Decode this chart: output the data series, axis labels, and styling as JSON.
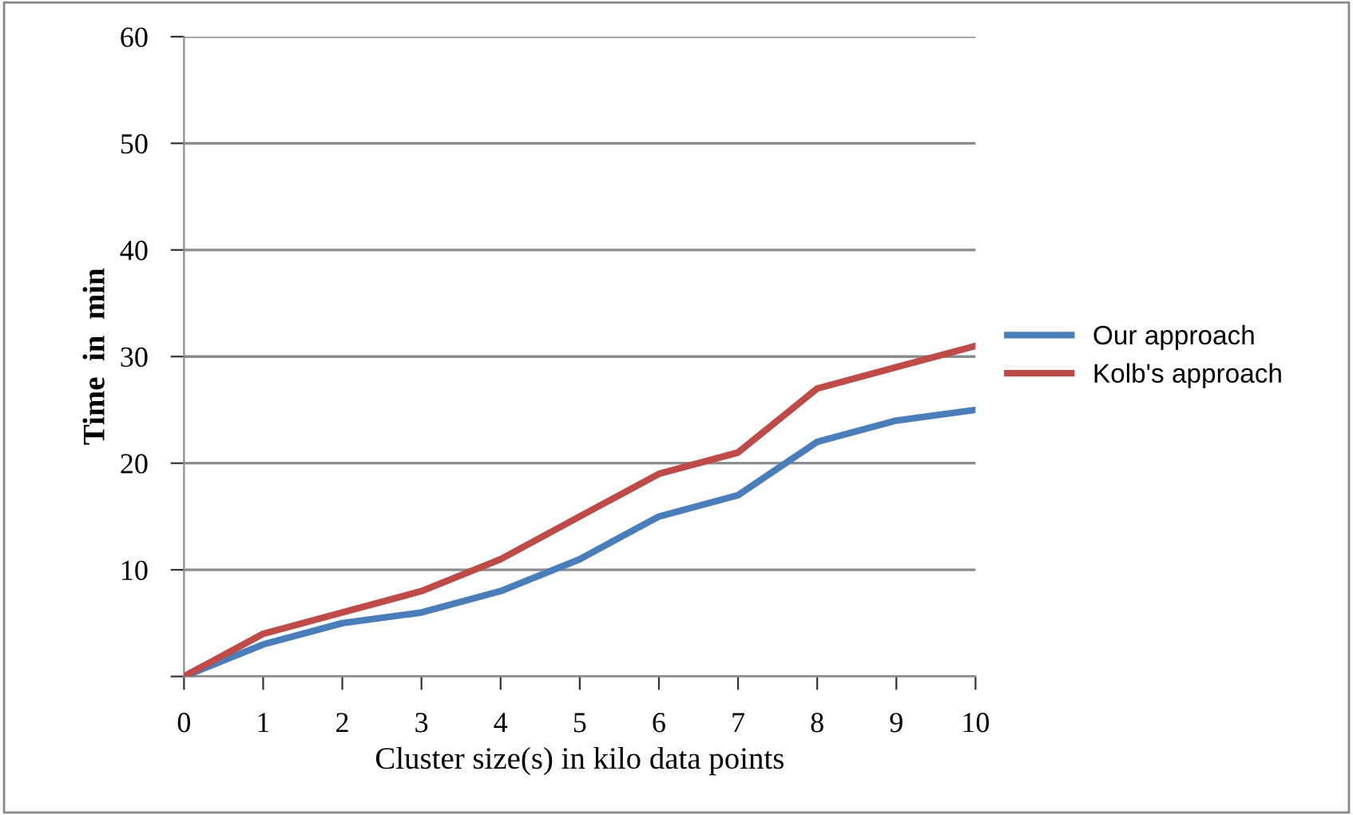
{
  "chart_data": {
    "type": "line",
    "xlabel": "Cluster size(s) in kilo data points",
    "ylabel": "Time  in  min",
    "x": [
      0,
      1,
      2,
      3,
      4,
      5,
      6,
      7,
      8,
      9,
      10
    ],
    "series": [
      {
        "name": "Our approach",
        "color": "#4a7ebb",
        "values": [
          0,
          3,
          5,
          6,
          8,
          11,
          15,
          17,
          22,
          24,
          25
        ]
      },
      {
        "name": "Kolb's approach",
        "color": "#be4b48",
        "values": [
          0,
          4,
          6,
          8,
          11,
          15,
          19,
          21,
          27,
          29,
          31
        ]
      }
    ],
    "xlim": [
      0,
      10
    ],
    "ylim": [
      0,
      60
    ],
    "xticks": [
      {
        "value": 0,
        "label": "0"
      },
      1,
      2,
      3,
      4,
      5,
      6,
      7,
      8,
      9,
      10
    ],
    "yticks": [
      {
        "value": 0,
        "label": null
      },
      10,
      20,
      30,
      40,
      50,
      60
    ],
    "grid": "y",
    "legend": "right",
    "marker": "none",
    "line_style": "solid"
  }
}
